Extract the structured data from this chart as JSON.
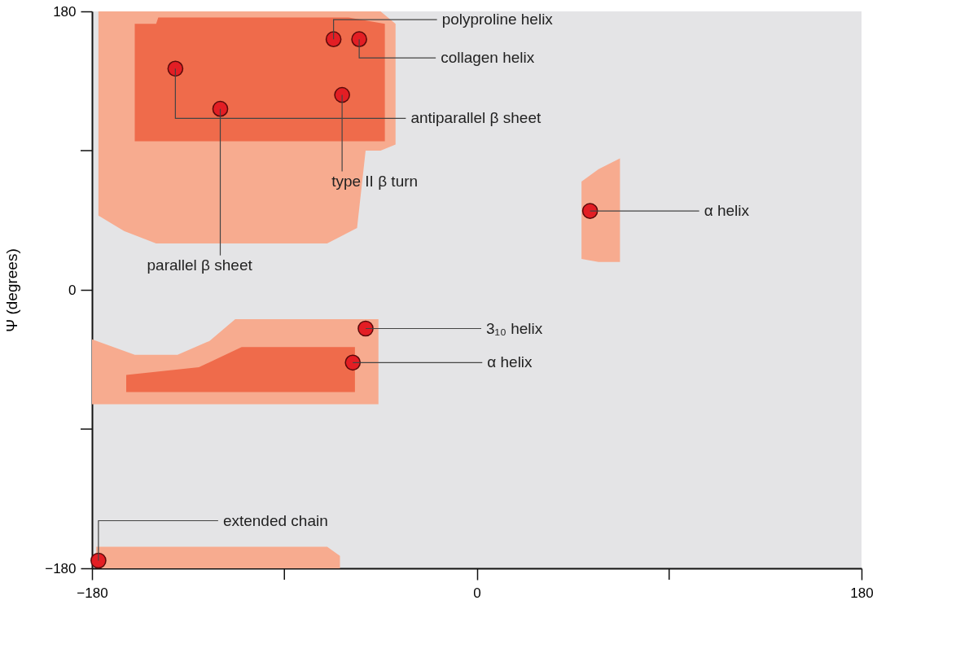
{
  "chart_data": {
    "type": "scatter",
    "ylabel": "Ψ (degrees)",
    "xlim": [
      -180,
      180
    ],
    "ylim": [
      -180,
      180
    ],
    "xticks": [
      -180,
      {
        "value": -90,
        "label": null
      },
      0,
      {
        "value": 90,
        "label": null
      },
      180
    ],
    "yticks": [
      -180,
      {
        "value": -90,
        "label": null
      },
      0,
      {
        "value": 90,
        "label": null
      },
      180
    ],
    "grid": false,
    "series": [
      {
        "type": "area",
        "color": "#f7ab8f",
        "x": [
          -177,
          -165,
          -150,
          -100,
          -70,
          -56,
          -52,
          -45,
          -38
        ],
        "values": [
          null,
          null,
          null,
          null,
          null,
          null,
          null,
          null,
          null
        ],
        "upper": [
          180,
          180,
          180,
          180,
          180,
          180,
          180,
          180,
          172
        ],
        "lower": [
          48,
          38,
          30,
          30,
          30,
          40,
          90,
          90,
          94
        ]
      },
      {
        "type": "area",
        "color": "#ef6b4b",
        "x": [
          -160,
          -150,
          -149,
          -100,
          -60,
          -43
        ],
        "values": [
          null,
          null,
          null,
          null,
          null,
          null
        ],
        "upper": [
          172,
          172,
          176,
          176,
          176,
          172
        ],
        "lower": [
          96,
          96,
          96,
          96,
          96,
          96
        ]
      },
      {
        "type": "area",
        "color": "#f7ab8f",
        "x": [
          -180,
          -160,
          -140,
          -125,
          -113,
          -80,
          -46
        ],
        "values": [
          null,
          null,
          null,
          null,
          null,
          null,
          null
        ],
        "upper": [
          -32,
          -42,
          -42,
          -33,
          -19,
          -19,
          -19
        ],
        "lower": [
          -74,
          -74,
          -74,
          -74,
          -74,
          -74,
          -74
        ]
      },
      {
        "type": "area",
        "color": "#ef6b4b",
        "x": [
          -164,
          -130,
          -110,
          -90,
          -57
        ],
        "values": [
          null,
          null,
          null,
          null,
          null
        ],
        "upper": [
          -55,
          -50,
          -37,
          -37,
          -37
        ],
        "lower": [
          -66,
          -66,
          -66,
          -66,
          -66
        ]
      },
      {
        "type": "area",
        "color": "#f7ab8f",
        "x": [
          49,
          57,
          67
        ],
        "values": [
          null,
          null,
          null
        ],
        "upper": [
          70,
          78,
          85
        ],
        "lower": [
          20,
          18,
          18
        ]
      },
      {
        "type": "area",
        "color": "#f7ab8f",
        "x": [
          -178,
          -70,
          -64
        ],
        "values": [
          null,
          null,
          null
        ],
        "upper": [
          -166,
          -166,
          -172
        ],
        "lower": [
          -180,
          -180,
          -180
        ]
      },
      {
        "color": "#e31e24",
        "marker": "circle",
        "x": [
          -67,
          -55,
          -141,
          -63,
          -120,
          53,
          -52,
          -58,
          -177
        ],
        "values": [
          162,
          162,
          143,
          126,
          117,
          51,
          -25,
          -47,
          -175
        ]
      }
    ],
    "annotations": [
      {
        "text": "polyproline helix",
        "x": -67,
        "y": 162
      },
      {
        "text": "collagen helix",
        "x": -55,
        "y": 162
      },
      {
        "text": "antiparallel β sheet",
        "x": -141,
        "y": 143
      },
      {
        "text": "type II β turn",
        "x": -63,
        "y": 126
      },
      {
        "text": "parallel β sheet",
        "x": -120,
        "y": 117
      },
      {
        "text": "α helix",
        "x": 53,
        "y": 51
      },
      {
        "text": "3₁₀ helix",
        "x": -52,
        "y": -25
      },
      {
        "text": "α helix",
        "x": -58,
        "y": -47
      },
      {
        "text": "extended chain",
        "x": -177,
        "y": -175
      }
    ]
  }
}
